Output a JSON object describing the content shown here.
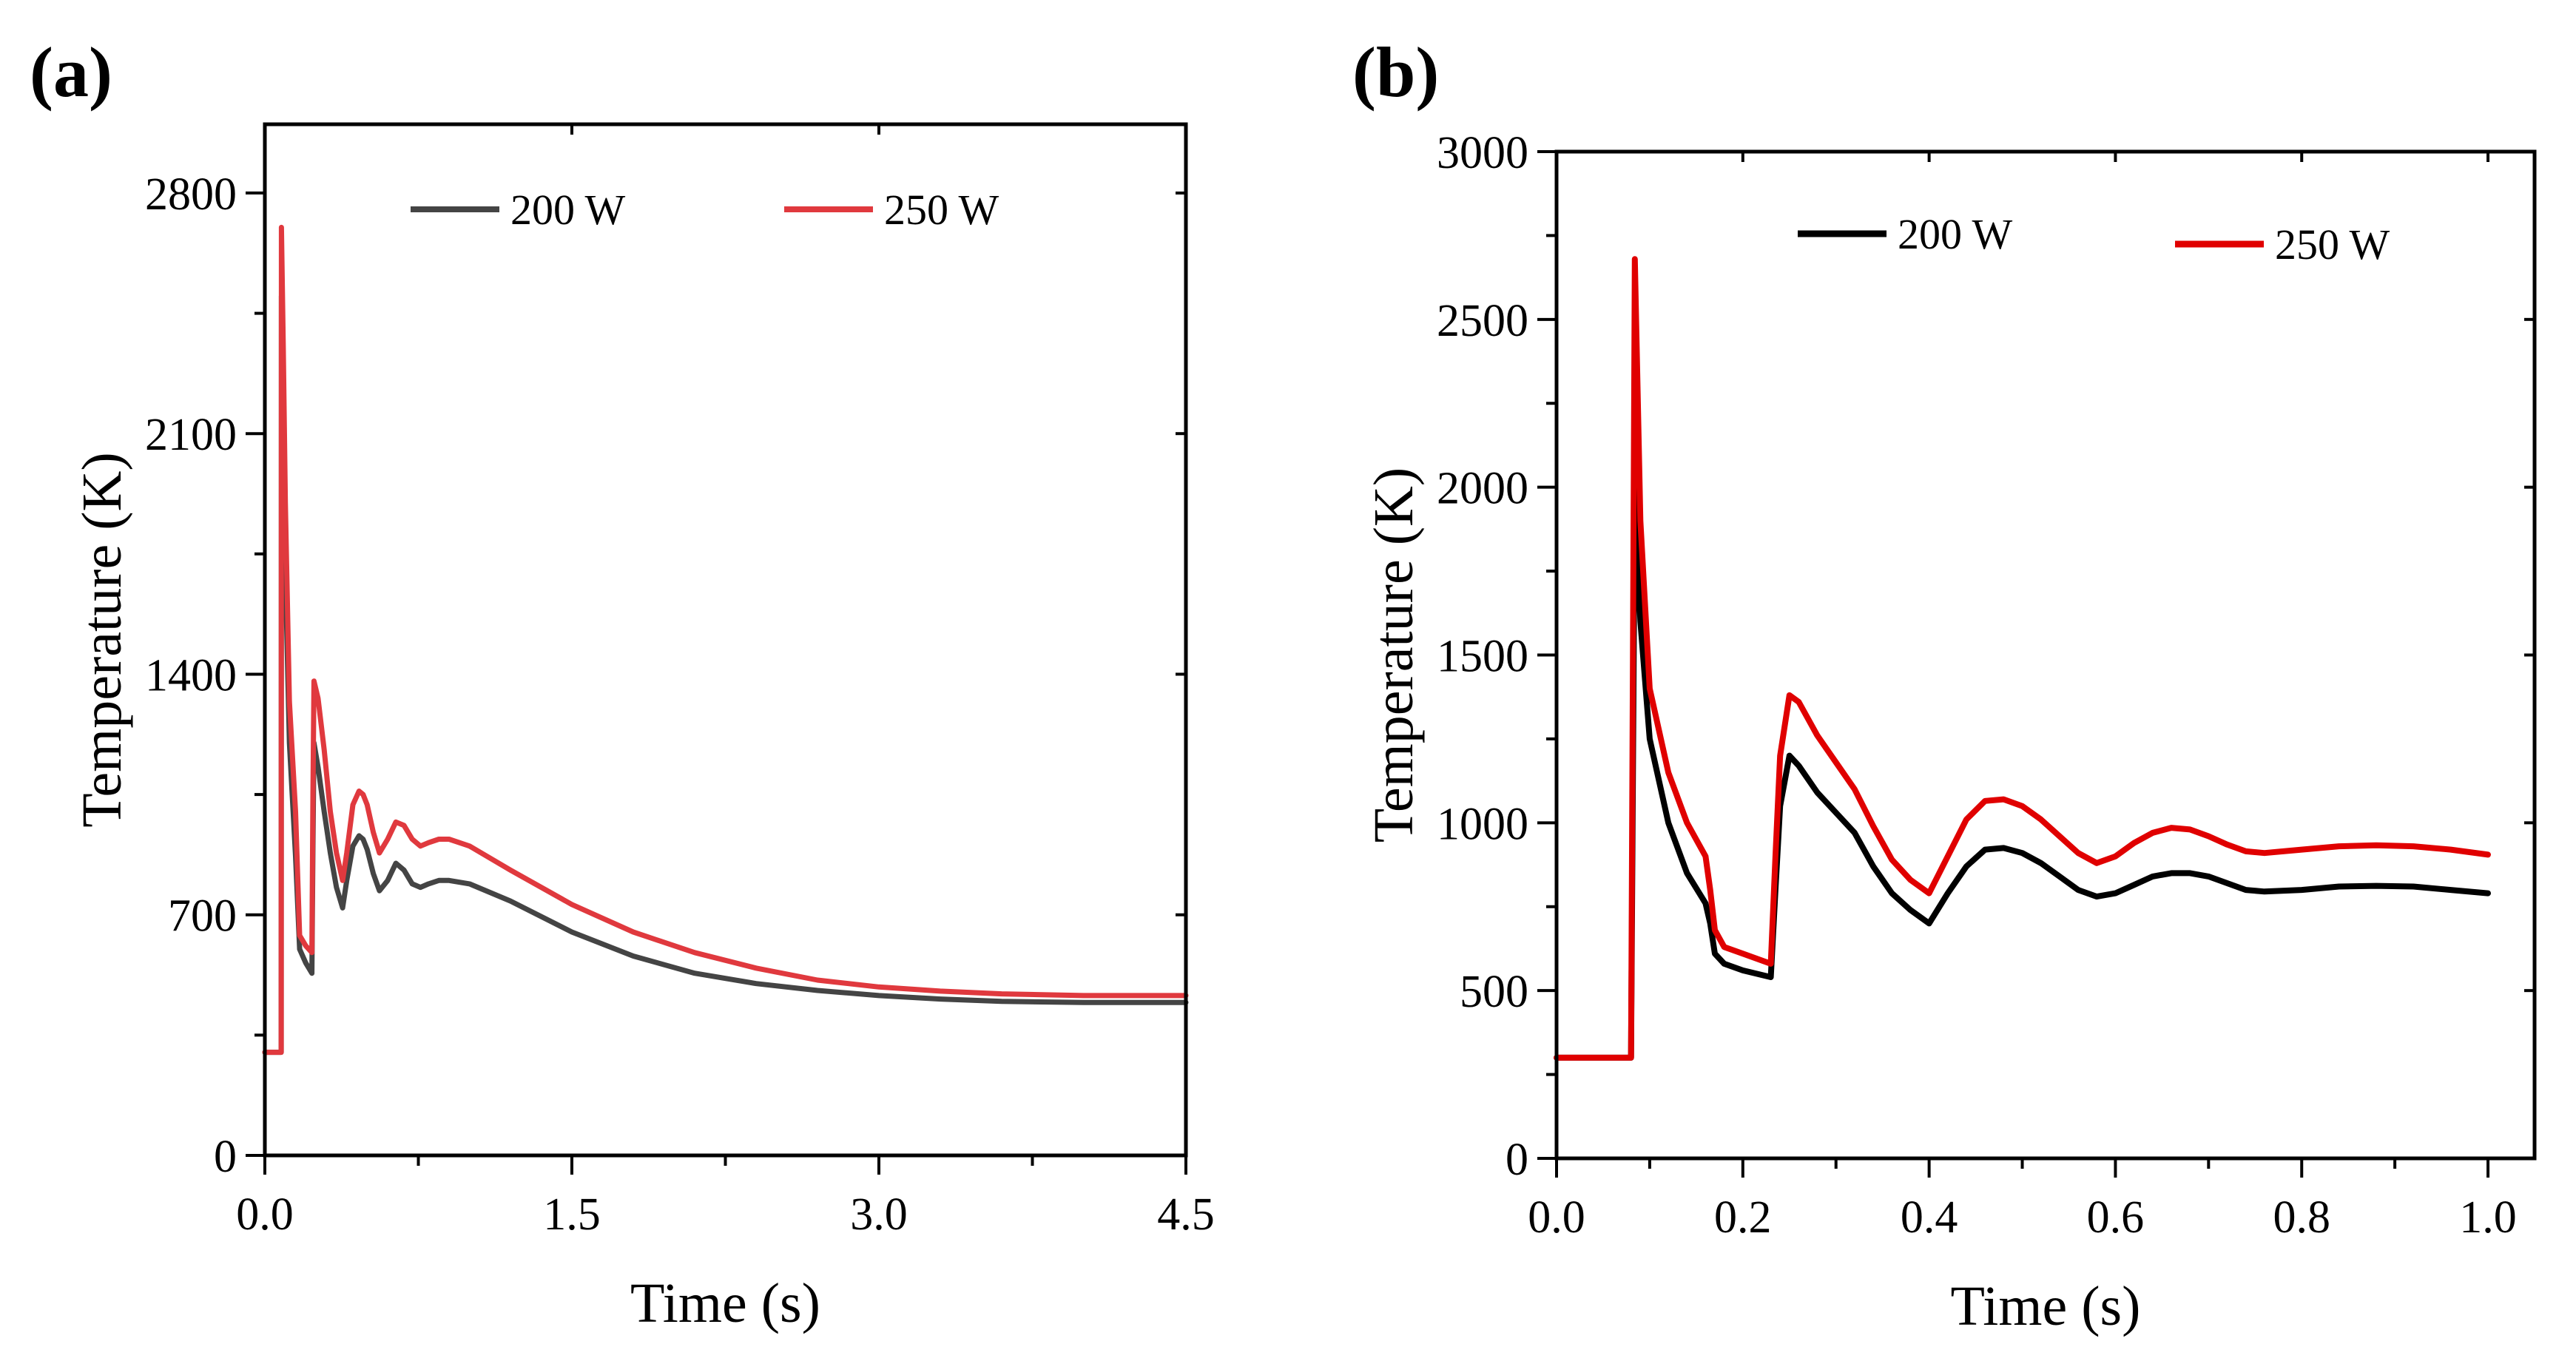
{
  "chart_data": [
    {
      "panel_label": "(a)",
      "type": "line",
      "xlabel": "Time (s)",
      "ylabel": "Temperature (K)",
      "xlim": [
        0,
        4.5
      ],
      "ylim": [
        0,
        3000
      ],
      "xticks": [
        0.0,
        1.5,
        3.0,
        4.5
      ],
      "xtick_labels": [
        "0.0",
        "1.5",
        "3.0",
        "4.5"
      ],
      "yticks": [
        0,
        700,
        1400,
        2100,
        2800
      ],
      "ytick_labels": [
        "0",
        "700",
        "1400",
        "2100",
        "2800"
      ],
      "legend_position": "top",
      "series": [
        {
          "name": "200 W",
          "color": "#444444",
          "x": [
            0,
            0.08,
            0.081,
            0.09,
            0.1,
            0.12,
            0.15,
            0.17,
            0.2,
            0.23,
            0.235,
            0.24,
            0.26,
            0.29,
            0.32,
            0.35,
            0.38,
            0.4,
            0.43,
            0.46,
            0.48,
            0.5,
            0.53,
            0.56,
            0.6,
            0.64,
            0.68,
            0.72,
            0.76,
            0.8,
            0.85,
            0.9,
            1.0,
            1.2,
            1.5,
            1.8,
            2.1,
            2.4,
            2.7,
            3.0,
            3.3,
            3.6,
            4.0,
            4.5
          ],
          "y": [
            300,
            300,
            2500,
            2150,
            1700,
            1200,
            870,
            600,
            560,
            530,
            900,
            1200,
            1130,
            1000,
            880,
            780,
            720,
            800,
            900,
            930,
            920,
            890,
            820,
            770,
            800,
            850,
            830,
            790,
            780,
            790,
            800,
            800,
            790,
            740,
            650,
            580,
            530,
            500,
            480,
            465,
            455,
            448,
            445,
            445
          ]
        },
        {
          "name": "250 W",
          "color": "#e0393e",
          "x": [
            0,
            0.08,
            0.081,
            0.09,
            0.1,
            0.12,
            0.15,
            0.17,
            0.2,
            0.23,
            0.235,
            0.24,
            0.26,
            0.29,
            0.32,
            0.35,
            0.38,
            0.4,
            0.43,
            0.46,
            0.48,
            0.5,
            0.53,
            0.56,
            0.6,
            0.64,
            0.68,
            0.72,
            0.76,
            0.8,
            0.85,
            0.9,
            1.0,
            1.2,
            1.5,
            1.8,
            2.1,
            2.4,
            2.7,
            3.0,
            3.3,
            3.6,
            4.0,
            4.5
          ],
          "y": [
            300,
            300,
            2700,
            2350,
            1900,
            1320,
            1000,
            640,
            610,
            590,
            1050,
            1380,
            1330,
            1180,
            1000,
            880,
            800,
            880,
            1020,
            1060,
            1050,
            1020,
            940,
            880,
            920,
            970,
            960,
            920,
            900,
            910,
            920,
            920,
            900,
            830,
            730,
            650,
            590,
            545,
            510,
            490,
            478,
            470,
            465,
            465
          ]
        }
      ]
    },
    {
      "panel_label": "(b)",
      "type": "line",
      "xlabel": "Time (s)",
      "ylabel": "Temperature (K)",
      "xlim": [
        0,
        1.05
      ],
      "ylim": [
        0,
        3000
      ],
      "xticks": [
        0.0,
        0.2,
        0.4,
        0.6,
        0.8,
        1.0
      ],
      "xtick_labels": [
        "0.0",
        "0.2",
        "0.4",
        "0.6",
        "0.8",
        "1.0"
      ],
      "yticks": [
        0,
        500,
        1000,
        1500,
        2000,
        2500,
        3000
      ],
      "ytick_labels": [
        "0",
        "500",
        "1000",
        "1500",
        "2000",
        "2500",
        "3000"
      ],
      "legend_position": "top",
      "series": [
        {
          "name": "200 W",
          "color": "#000000",
          "x": [
            0,
            0.08,
            0.084,
            0.09,
            0.1,
            0.12,
            0.14,
            0.16,
            0.165,
            0.17,
            0.18,
            0.2,
            0.23,
            0.235,
            0.24,
            0.25,
            0.26,
            0.28,
            0.3,
            0.32,
            0.34,
            0.36,
            0.38,
            0.4,
            0.42,
            0.44,
            0.46,
            0.48,
            0.5,
            0.52,
            0.54,
            0.56,
            0.58,
            0.6,
            0.62,
            0.64,
            0.66,
            0.68,
            0.7,
            0.72,
            0.74,
            0.76,
            0.8,
            0.84,
            0.88,
            0.92,
            0.96,
            1.0
          ],
          "y": [
            300,
            300,
            2000,
            1600,
            1250,
            1000,
            850,
            760,
            700,
            610,
            580,
            560,
            540,
            800,
            1050,
            1200,
            1170,
            1090,
            1030,
            970,
            870,
            790,
            740,
            700,
            790,
            870,
            920,
            925,
            910,
            880,
            840,
            800,
            780,
            790,
            815,
            840,
            850,
            850,
            840,
            820,
            800,
            795,
            800,
            810,
            812,
            810,
            800,
            790
          ]
        },
        {
          "name": "250 W",
          "color": "#e00000",
          "x": [
            0,
            0.08,
            0.084,
            0.09,
            0.1,
            0.12,
            0.14,
            0.16,
            0.165,
            0.17,
            0.18,
            0.2,
            0.23,
            0.235,
            0.24,
            0.25,
            0.26,
            0.28,
            0.3,
            0.32,
            0.34,
            0.36,
            0.38,
            0.4,
            0.42,
            0.44,
            0.46,
            0.48,
            0.5,
            0.52,
            0.54,
            0.56,
            0.58,
            0.6,
            0.62,
            0.64,
            0.66,
            0.68,
            0.7,
            0.72,
            0.74,
            0.76,
            0.8,
            0.84,
            0.88,
            0.92,
            0.96,
            1.0
          ],
          "y": [
            300,
            300,
            2680,
            1900,
            1400,
            1150,
            1000,
            900,
            800,
            680,
            630,
            610,
            580,
            900,
            1200,
            1380,
            1360,
            1260,
            1180,
            1100,
            990,
            890,
            830,
            790,
            900,
            1010,
            1065,
            1070,
            1050,
            1010,
            960,
            910,
            880,
            900,
            940,
            970,
            985,
            980,
            960,
            935,
            915,
            910,
            920,
            930,
            933,
            930,
            920,
            905
          ]
        }
      ]
    }
  ]
}
